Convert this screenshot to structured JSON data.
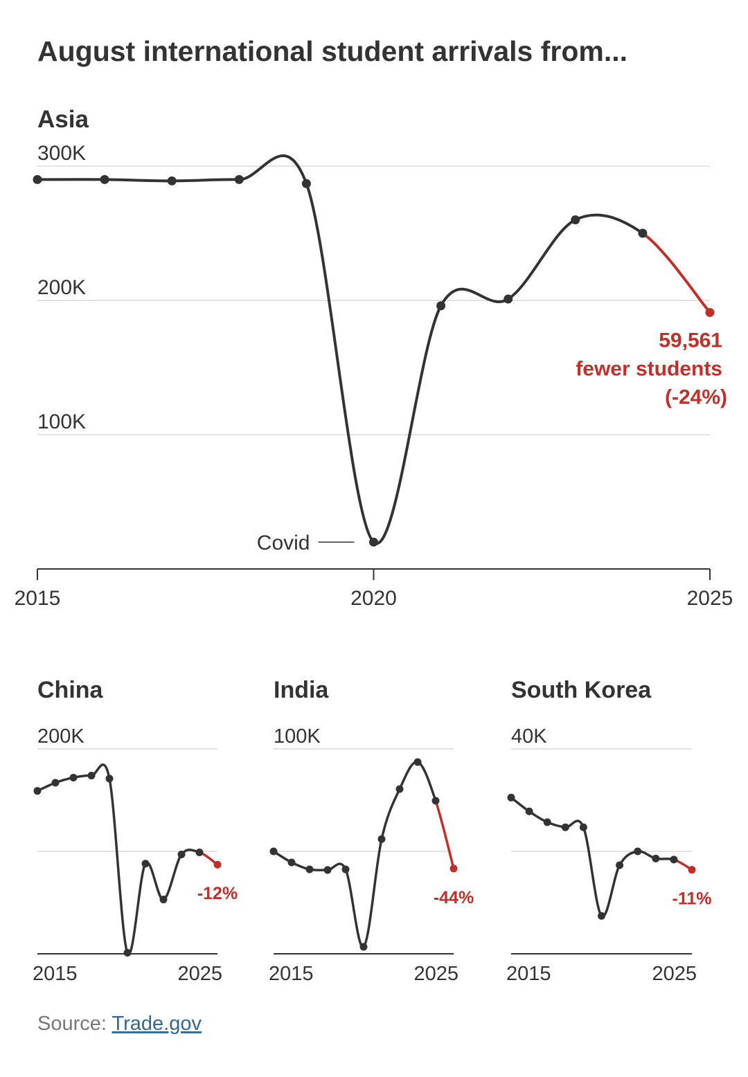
{
  "title": "August international student arrivals from...",
  "source": {
    "label": "Source:",
    "link": "Trade.gov"
  },
  "chart_data": [
    {
      "type": "line",
      "title": "Asia",
      "x": [
        2015,
        2016,
        2017,
        2018,
        2019,
        2020,
        2021,
        2022,
        2023,
        2024,
        2025
      ],
      "series": [
        {
          "color": "#333333",
          "highlight_color": "#c0302a",
          "highlight_from": 2024,
          "values": [
            290,
            290,
            289,
            290,
            287,
            20,
            196,
            201,
            260,
            250,
            191
          ]
        }
      ],
      "xlim": [
        2015,
        2025
      ],
      "xticks": [
        2015,
        2020,
        2025
      ],
      "xtick_marks": true,
      "ylim": [
        0,
        300
      ],
      "yticks": [
        {
          "value": 100,
          "label": "100K"
        },
        {
          "value": 200,
          "label": "200K"
        },
        {
          "value": 300,
          "label": "300K"
        }
      ],
      "annotation": [
        "59,561",
        "fewer students",
        "(-24%)"
      ],
      "event_label": {
        "text": "Covid",
        "x": 2020
      }
    },
    {
      "type": "line",
      "title": "China",
      "x": [
        2015,
        2016,
        2017,
        2018,
        2019,
        2020,
        2021,
        2022,
        2023,
        2024,
        2025
      ],
      "series": [
        {
          "color": "#333333",
          "highlight_color": "#c0302a",
          "highlight_from": 2024,
          "values": [
            159,
            167,
            172,
            174,
            171,
            1,
            88,
            53,
            97,
            99,
            87
          ]
        }
      ],
      "xlim": [
        2015,
        2025
      ],
      "xticks": [
        2015,
        2025
      ],
      "xtick_marks": false,
      "ylim": [
        0,
        200
      ],
      "yticks": [
        {
          "value": 200,
          "label": "200K"
        }
      ],
      "grid_lines": [
        100
      ],
      "annotation": [
        "-12%"
      ]
    },
    {
      "type": "line",
      "title": "India",
      "x": [
        2015,
        2016,
        2017,
        2018,
        2019,
        2020,
        2021,
        2022,
        2023,
        2024,
        2025
      ],
      "series": [
        {
          "color": "#333333",
          "highlight_color": "#c0302a",
          "highlight_from": 2024,
          "values": [
            50,
            44.6,
            41.2,
            40.9,
            41.2,
            3.4,
            56,
            80.4,
            93.6,
            74.7,
            41.6
          ]
        }
      ],
      "xlim": [
        2015,
        2025
      ],
      "xticks": [
        2015,
        2025
      ],
      "xtick_marks": false,
      "ylim": [
        0,
        100
      ],
      "yticks": [
        {
          "value": 100,
          "label": "100K"
        }
      ],
      "grid_lines": [
        50
      ],
      "annotation": [
        "-44%"
      ]
    },
    {
      "type": "line",
      "title": "South Korea",
      "x": [
        2015,
        2016,
        2017,
        2018,
        2019,
        2020,
        2021,
        2022,
        2023,
        2024,
        2025
      ],
      "series": [
        {
          "color": "#333333",
          "highlight_color": "#c0302a",
          "highlight_from": 2024,
          "values": [
            30.5,
            27.8,
            25.7,
            24.7,
            24.7,
            7.4,
            17.3,
            20,
            18.6,
            18.4,
            16.4
          ]
        }
      ],
      "xlim": [
        2015,
        2025
      ],
      "xticks": [
        2015,
        2025
      ],
      "xtick_marks": false,
      "ylim": [
        0,
        40
      ],
      "yticks": [
        {
          "value": 40,
          "label": "40K"
        }
      ],
      "grid_lines": [
        20
      ],
      "annotation": [
        "-11%"
      ]
    }
  ]
}
